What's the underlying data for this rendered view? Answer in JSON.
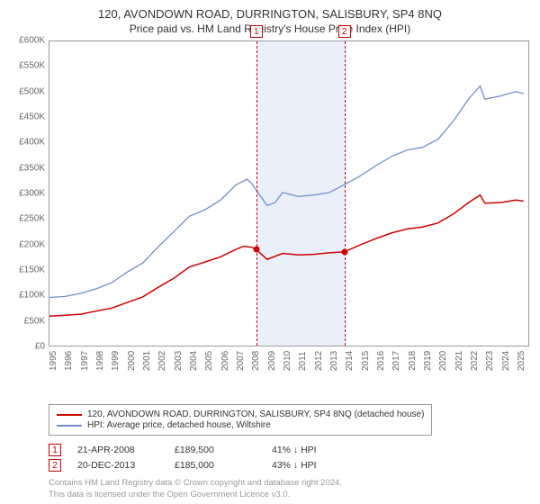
{
  "title": "120, AVONDOWN ROAD, DURRINGTON, SALISBURY, SP4 8NQ",
  "subtitle": "Price paid vs. HM Land Registry's House Price Index (HPI)",
  "chart": {
    "type": "line",
    "background_color": "#ffffff",
    "border_color": "#999999",
    "y": {
      "min": 0,
      "max": 600000,
      "step": 50000,
      "labels": [
        "£0",
        "£50K",
        "£100K",
        "£150K",
        "£200K",
        "£250K",
        "£300K",
        "£350K",
        "£400K",
        "£450K",
        "£500K",
        "£550K",
        "£600K"
      ],
      "label_color": "#666666",
      "label_fontsize": 10
    },
    "x": {
      "min": 1995,
      "max": 2025.8,
      "ticks": [
        1995,
        1996,
        1997,
        1998,
        1999,
        2000,
        2001,
        2002,
        2003,
        2004,
        2005,
        2006,
        2007,
        2008,
        2009,
        2010,
        2011,
        2012,
        2013,
        2014,
        2015,
        2016,
        2017,
        2018,
        2019,
        2020,
        2021,
        2022,
        2023,
        2024,
        2025
      ],
      "label_color": "#666666",
      "label_fontsize": 10
    },
    "shaded_band": {
      "start_year": 2008.3,
      "end_year": 2013.97,
      "color": "#eaf0fa"
    },
    "vertical_markers": [
      {
        "x": 2008.3,
        "label": "1",
        "color": "#cc0000",
        "dash": true
      },
      {
        "x": 2013.97,
        "label": "2",
        "color": "#cc0000",
        "dash": true
      }
    ],
    "series": [
      {
        "name": "property",
        "color": "#cc0000",
        "line_width": 1.5,
        "points": [
          [
            1995,
            58000
          ],
          [
            1996,
            60000
          ],
          [
            1997,
            62000
          ],
          [
            1998,
            68000
          ],
          [
            1999,
            74000
          ],
          [
            2000,
            85000
          ],
          [
            2001,
            96000
          ],
          [
            2002,
            115000
          ],
          [
            2003,
            133000
          ],
          [
            2004,
            155000
          ],
          [
            2005,
            165000
          ],
          [
            2006,
            175000
          ],
          [
            2007,
            190000
          ],
          [
            2007.5,
            196000
          ],
          [
            2008,
            194000
          ],
          [
            2008.3,
            189500
          ],
          [
            2009,
            170000
          ],
          [
            2010,
            182000
          ],
          [
            2011,
            179000
          ],
          [
            2012,
            180000
          ],
          [
            2013,
            183000
          ],
          [
            2013.97,
            185000
          ],
          [
            2015,
            199000
          ],
          [
            2016,
            211000
          ],
          [
            2017,
            222000
          ],
          [
            2018,
            230000
          ],
          [
            2019,
            234000
          ],
          [
            2020,
            242000
          ],
          [
            2021,
            260000
          ],
          [
            2022,
            283000
          ],
          [
            2022.7,
            297000
          ],
          [
            2023,
            281000
          ],
          [
            2024,
            282000
          ],
          [
            2025,
            287000
          ],
          [
            2025.5,
            285000
          ]
        ],
        "sale_points": [
          {
            "x": 2008.3,
            "y": 189500
          },
          {
            "x": 2013.97,
            "y": 185000
          }
        ]
      },
      {
        "name": "hpi",
        "color": "#6f8fc8",
        "line_width": 1.3,
        "points": [
          [
            1995,
            95000
          ],
          [
            1996,
            97000
          ],
          [
            1997,
            103000
          ],
          [
            1998,
            112000
          ],
          [
            1999,
            124000
          ],
          [
            2000,
            145000
          ],
          [
            2001,
            163000
          ],
          [
            2002,
            195000
          ],
          [
            2003,
            225000
          ],
          [
            2004,
            255000
          ],
          [
            2005,
            268000
          ],
          [
            2006,
            287000
          ],
          [
            2007,
            317000
          ],
          [
            2007.7,
            328000
          ],
          [
            2008,
            320000
          ],
          [
            2009,
            276000
          ],
          [
            2009.5,
            282000
          ],
          [
            2010,
            302000
          ],
          [
            2011,
            294000
          ],
          [
            2012,
            297000
          ],
          [
            2013,
            302000
          ],
          [
            2014,
            318000
          ],
          [
            2015,
            335000
          ],
          [
            2016,
            355000
          ],
          [
            2017,
            373000
          ],
          [
            2018,
            386000
          ],
          [
            2019,
            391000
          ],
          [
            2020,
            407000
          ],
          [
            2021,
            444000
          ],
          [
            2022,
            488000
          ],
          [
            2022.7,
            512000
          ],
          [
            2023,
            486000
          ],
          [
            2024,
            492000
          ],
          [
            2025,
            501000
          ],
          [
            2025.5,
            497000
          ]
        ]
      }
    ]
  },
  "legend": {
    "border_color": "#999999",
    "fontsize": 10,
    "items": [
      {
        "color": "#cc0000",
        "label": "120, AVONDOWN ROAD, DURRINGTON, SALISBURY, SP4 8NQ (detached house)"
      },
      {
        "color": "#6f8fc8",
        "label": "HPI: Average price, detached house, Wiltshire"
      }
    ]
  },
  "transactions": [
    {
      "num": "1",
      "date": "21-APR-2008",
      "price": "£189,500",
      "delta": "41% ↓ HPI"
    },
    {
      "num": "2",
      "date": "20-DEC-2013",
      "price": "£185,000",
      "delta": "43% ↓ HPI"
    }
  ],
  "footer_line1": "Contains HM Land Registry data © Crown copyright and database right 2024.",
  "footer_line2": "This data is licensed under the Open Government Licence v3.0."
}
